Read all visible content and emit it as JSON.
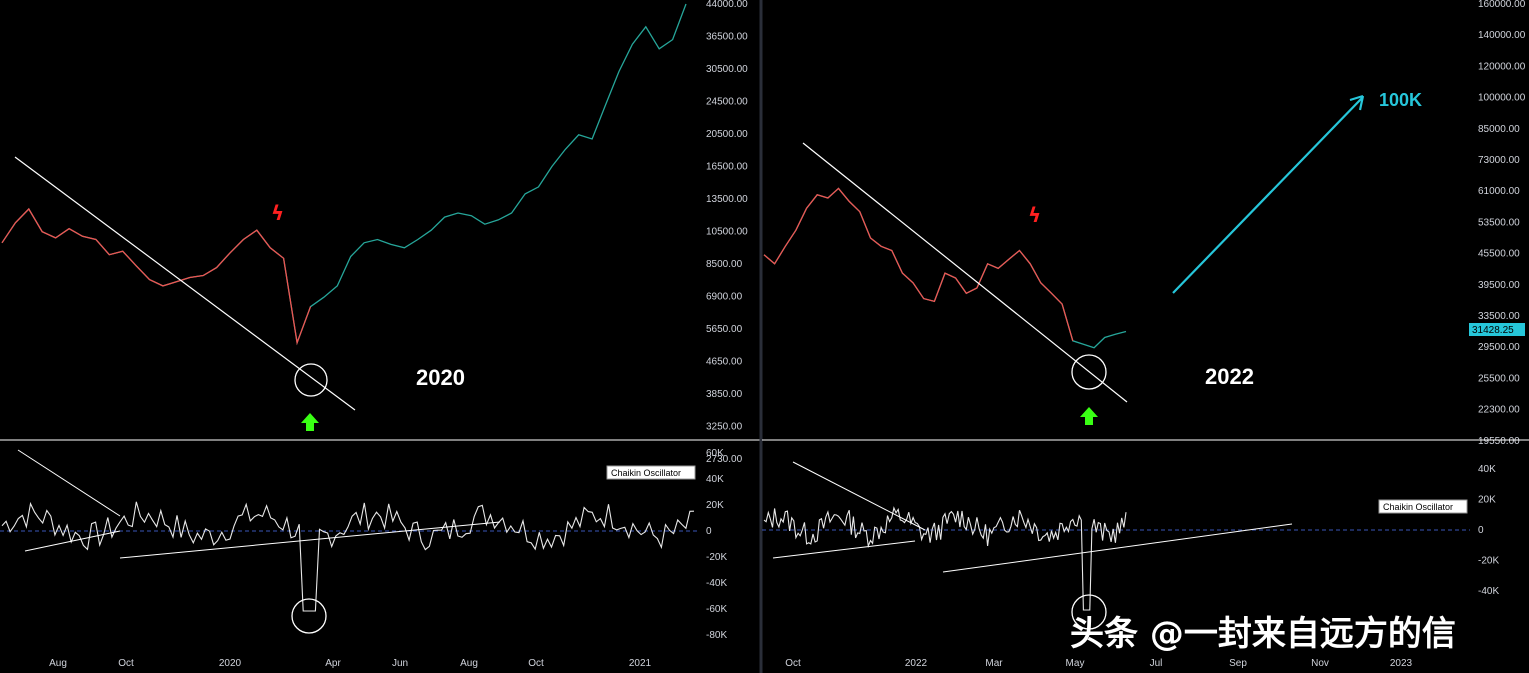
{
  "chart_data": [
    {
      "type": "line",
      "title": "2020",
      "description_label": "2020",
      "ylabel": "",
      "yscale": "log",
      "price_ticks": [
        "44000.00",
        "36500.00",
        "30500.00",
        "24500.00",
        "20500.00",
        "16500.00",
        "13500.00",
        "10500.00",
        "8500.00",
        "6900.00",
        "5650.00",
        "4650.00",
        "3850.00",
        "3250.00",
        "2730.00"
      ],
      "x_ticks": [
        "Aug",
        "Oct",
        "2020",
        "Apr",
        "Jun",
        "Aug",
        "Oct",
        "2021"
      ],
      "oscillator_label": "Chaikin Oscillator",
      "oscillator_ticks": [
        "60K",
        "40K",
        "20K",
        "0",
        "-20K",
        "-40K",
        "-60K",
        "-80K"
      ],
      "price_series": [
        9500,
        10800,
        11800,
        10200,
        9800,
        10400,
        9900,
        9700,
        8800,
        9000,
        8200,
        7500,
        7200,
        7400,
        7600,
        7700,
        8100,
        8900,
        9700,
        10300,
        9200,
        8600,
        5000,
        6300,
        6700,
        7200,
        8700,
        9500,
        9700,
        9400,
        9200,
        9700,
        10300,
        11200,
        11500,
        11300,
        10700,
        11000,
        11500,
        13000,
        13600,
        15500,
        17300,
        19000,
        18500,
        23000,
        28500,
        34000,
        38000,
        33000,
        35000,
        44000
      ]
    },
    {
      "type": "line",
      "title": "2022",
      "description_label": "2022",
      "target_label": "100K",
      "current_price": "31428.25",
      "yscale": "log",
      "price_ticks": [
        "160000.00",
        "140000.00",
        "120000.00",
        "100000.00",
        "85000.00",
        "73000.00",
        "61000.00",
        "53500.00",
        "45500.00",
        "39500.00",
        "33500.00",
        "29500.00",
        "25500.00",
        "22300.00",
        "19550.00"
      ],
      "x_ticks": [
        "Oct",
        "2022",
        "Mar",
        "May",
        "Jul",
        "Sep",
        "Nov",
        "2023"
      ],
      "oscillator_label": "Chaikin Oscillator",
      "oscillator_ticks": [
        "40K",
        "20K",
        "0",
        "-20K",
        "-40K"
      ],
      "price_series": [
        46000,
        44000,
        48000,
        52000,
        58000,
        62000,
        61000,
        64000,
        60000,
        57000,
        50000,
        48000,
        47000,
        42000,
        40000,
        37000,
        36500,
        42000,
        41000,
        38000,
        39000,
        44000,
        43000,
        45000,
        47000,
        44000,
        40000,
        38000,
        36000,
        30000,
        29500,
        29000,
        30500,
        31000,
        31428
      ]
    }
  ],
  "watermark": "头条 @一封来自远方的信"
}
